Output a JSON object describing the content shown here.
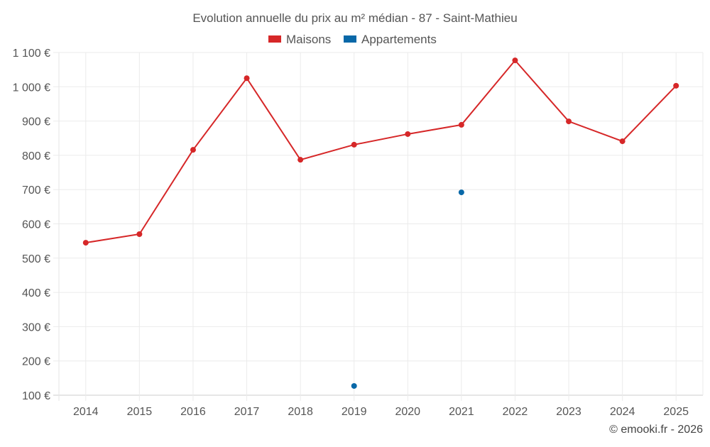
{
  "chart_data": {
    "type": "line",
    "title": "Evolution annuelle du prix au m² médian - 87 - Saint-Mathieu",
    "xlabel": "",
    "ylabel": "",
    "categories": [
      "2014",
      "2015",
      "2016",
      "2017",
      "2018",
      "2019",
      "2020",
      "2021",
      "2022",
      "2023",
      "2024",
      "2025"
    ],
    "ylim": [
      100,
      1100
    ],
    "yticks": [
      100,
      200,
      300,
      400,
      500,
      600,
      700,
      800,
      900,
      1000,
      1100
    ],
    "ytick_labels": [
      "100 €",
      "200 €",
      "300 €",
      "400 €",
      "500 €",
      "600 €",
      "700 €",
      "800 €",
      "900 €",
      "1 000 €",
      "1 100 €"
    ],
    "grid": true,
    "legend_position": "top-center",
    "series": [
      {
        "name": "Maisons",
        "color": "#d62728",
        "values": [
          545,
          570,
          816,
          1025,
          787,
          831,
          862,
          889,
          1077,
          899,
          841,
          1003
        ]
      },
      {
        "name": "Appartements",
        "color": "#0868a8",
        "values": [
          null,
          null,
          null,
          null,
          null,
          127,
          null,
          692,
          null,
          null,
          null,
          null
        ]
      }
    ]
  },
  "footer": {
    "credit": "© emooki.fr - 2026"
  }
}
